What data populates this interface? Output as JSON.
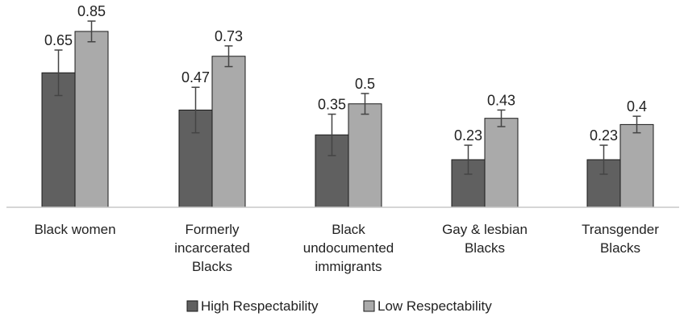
{
  "chart_data": {
    "type": "bar",
    "title": "",
    "xlabel": "",
    "ylabel": "",
    "ylim": [
      0,
      0.92
    ],
    "grid": false,
    "legend_position": "bottom",
    "categories": [
      [
        "Black women"
      ],
      [
        "Formerly",
        "incarcerated",
        "Blacks"
      ],
      [
        "Black",
        "undocumented",
        "immigrants"
      ],
      [
        "Gay & lesbian",
        "Blacks"
      ],
      [
        "Transgender",
        "Blacks"
      ]
    ],
    "series": [
      {
        "name": "High Respectability",
        "color": "#606060",
        "values": [
          0.65,
          0.47,
          0.35,
          0.23,
          0.23
        ],
        "labels": [
          "0.65",
          "0.47",
          "0.35",
          "0.23",
          "0.23"
        ],
        "error": [
          0.11,
          0.11,
          0.1,
          0.07,
          0.07
        ]
      },
      {
        "name": "Low Respectability",
        "color": "#aaaaaa",
        "values": [
          0.85,
          0.73,
          0.5,
          0.43,
          0.4
        ],
        "labels": [
          "0.85",
          "0.73",
          "0.5",
          "0.43",
          "0.4"
        ],
        "error": [
          0.05,
          0.05,
          0.05,
          0.04,
          0.04
        ]
      }
    ]
  }
}
